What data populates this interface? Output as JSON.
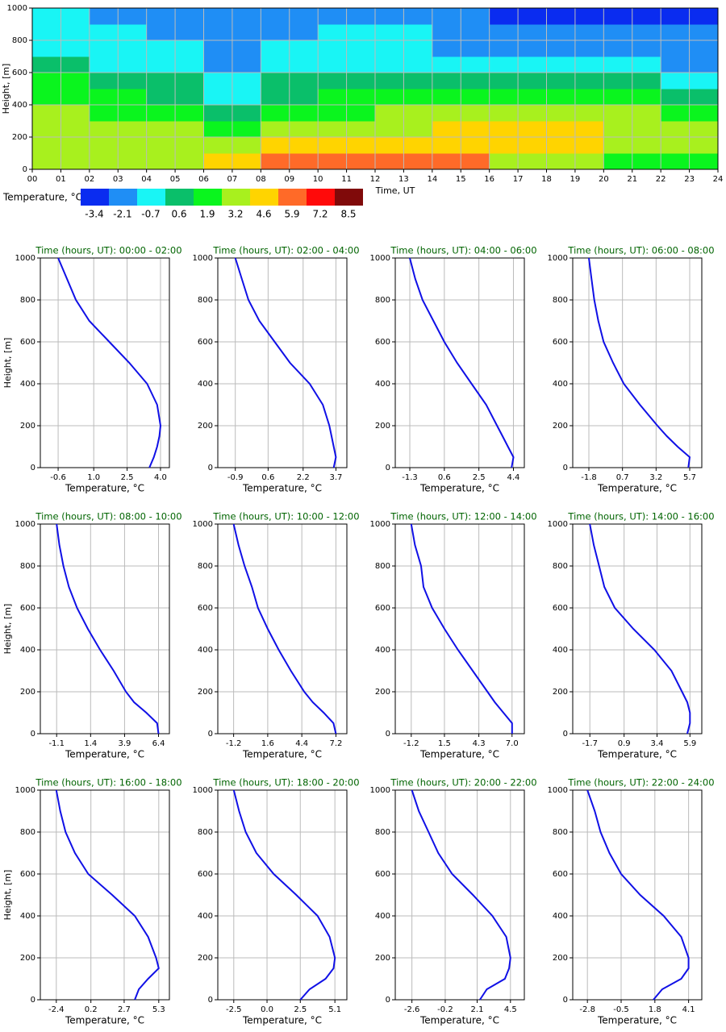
{
  "chart_data": [
    {
      "type": "heatmap",
      "xlabel": "Time, UT",
      "ylabel": "Height, [m]",
      "xbins": [
        0,
        2,
        4,
        6,
        8,
        10,
        12,
        14,
        16,
        18,
        20,
        22,
        24
      ],
      "ybins": [
        0,
        100,
        200,
        300,
        400,
        500,
        600,
        700,
        800,
        900,
        1000
      ],
      "values": [
        [
          3.7,
          3.7,
          4.4,
          5.7,
          6.3,
          7.0,
          7.0,
          5.9,
          3.8,
          3.2,
          2.8,
          2.3
        ],
        [
          3.9,
          3.5,
          3.8,
          4.0,
          4.6,
          5.3,
          5.6,
          5.7,
          5.3,
          5.0,
          4.4,
          4.1
        ],
        [
          3.9,
          3.3,
          3.2,
          2.6,
          3.5,
          4.0,
          4.4,
          4.9,
          4.8,
          4.9,
          4.3,
          3.8
        ],
        [
          3.6,
          2.8,
          2.5,
          1.4,
          2.6,
          3.0,
          3.2,
          3.8,
          4.0,
          4.2,
          3.7,
          3.0
        ],
        [
          3.0,
          2.0,
          1.7,
          0.4,
          1.6,
          2.0,
          2.0,
          2.4,
          2.6,
          3.0,
          2.5,
          1.6
        ],
        [
          2.2,
          1.2,
          0.9,
          -0.3,
          0.8,
          1.2,
          1.0,
          0.9,
          0.9,
          1.3,
          1.0,
          0.1
        ],
        [
          1.2,
          0.5,
          0.3,
          -0.9,
          0.1,
          0.5,
          0.1,
          -0.2,
          -0.5,
          -0.2,
          -0.2,
          -0.9
        ],
        [
          0.5,
          -0.1,
          -0.3,
          -1.3,
          -0.4,
          0.0,
          -0.3,
          -0.8,
          -1.4,
          -1.2,
          -1.1,
          -1.6
        ],
        [
          0.0,
          -0.5,
          -0.8,
          -1.5,
          -0.8,
          -0.6,
          -0.7,
          -1.2,
          -1.9,
          -1.9,
          -1.8,
          -2.1
        ],
        [
          -0.4,
          -0.8,
          -1.2,
          -1.7,
          -1.0,
          -1.0,
          -1.1,
          -1.6,
          -2.3,
          -2.3,
          -2.4,
          -2.6
        ]
      ],
      "xlim": [
        0,
        24
      ],
      "xticks": [
        {
          "value": 0,
          "label": "00"
        },
        {
          "value": 1,
          "label": "01"
        },
        {
          "value": 2,
          "label": "02"
        },
        {
          "value": 3,
          "label": "03"
        },
        {
          "value": 4,
          "label": "04"
        },
        {
          "value": 5,
          "label": "05"
        },
        {
          "value": 6,
          "label": "06"
        },
        {
          "value": 7,
          "label": "07"
        },
        {
          "value": 8,
          "label": "08"
        },
        {
          "value": 9,
          "label": "09"
        },
        10,
        11,
        12,
        13,
        14,
        15,
        16,
        17,
        18,
        19,
        20,
        21,
        22,
        23,
        24
      ],
      "ylim": [
        0,
        1000
      ],
      "yticks": [
        0,
        200,
        400,
        600,
        800,
        1000
      ],
      "grid": true,
      "colorbar": {
        "label": "Temperature, °C",
        "levels": [
          -3.4,
          -2.1,
          -0.7,
          0.6,
          1.9,
          3.2,
          4.6,
          5.9,
          7.2,
          8.5
        ],
        "colors": [
          "#0a2cf0",
          "#1f8ef5",
          "#19f5f5",
          "#0abf6a",
          "#0af51e",
          "#a8f01e",
          "#ffd400",
          "#ff6a28",
          "#ff0a0a",
          "#800a0a"
        ]
      }
    },
    {
      "type": "profile",
      "title": "Time (hours, UT): 00:00 - 02:00",
      "xlabel": "Temperature, °C",
      "ylabel": "Height, [m]",
      "color": "#1010e6",
      "heights": [
        0,
        50,
        100,
        150,
        200,
        300,
        400,
        500,
        600,
        700,
        800,
        900,
        1000
      ],
      "values": [
        3.5,
        3.7,
        3.85,
        3.95,
        4.0,
        3.85,
        3.4,
        2.6,
        1.7,
        0.8,
        0.2,
        -0.2,
        -0.6
      ],
      "xlim": [
        -1.4,
        4.4
      ],
      "xticks": [
        -0.6,
        {
          "value": 1,
          "label": "1.0"
        },
        2.5,
        {
          "value": 4,
          "label": "4.0"
        }
      ],
      "ylim": [
        0,
        1000
      ],
      "yticks": [
        0,
        200,
        400,
        600,
        800,
        1000
      ],
      "grid": true
    },
    {
      "type": "profile",
      "title": "Time (hours, UT): 02:00 - 04:00",
      "xlabel": "Temperature, °C",
      "color": "#1010e6",
      "heights": [
        0,
        50,
        100,
        150,
        200,
        300,
        400,
        500,
        600,
        700,
        800,
        900,
        1000
      ],
      "values": [
        3.6,
        3.7,
        3.6,
        3.5,
        3.4,
        3.1,
        2.5,
        1.6,
        0.9,
        0.2,
        -0.3,
        -0.6,
        -0.9
      ],
      "xlim": [
        -1.7,
        4.2
      ],
      "xticks": [
        -0.9,
        0.6,
        2.2,
        3.7
      ],
      "ylim": [
        0,
        1000
      ],
      "yticks": [
        0,
        200,
        400,
        600,
        800,
        1000
      ],
      "grid": true
    },
    {
      "type": "profile",
      "title": "Time (hours, UT): 04:00 - 06:00",
      "xlabel": "Temperature, °C",
      "color": "#1010e6",
      "heights": [
        0,
        50,
        100,
        150,
        200,
        300,
        400,
        500,
        600,
        700,
        800,
        900,
        1000
      ],
      "values": [
        4.3,
        4.4,
        4.1,
        3.8,
        3.5,
        2.9,
        2.1,
        1.3,
        0.6,
        0.0,
        -0.6,
        -1.0,
        -1.3
      ],
      "xlim": [
        -2.1,
        5.0
      ],
      "xticks": [
        -1.3,
        0.6,
        2.5,
        4.4
      ],
      "ylim": [
        0,
        1000
      ],
      "yticks": [
        0,
        200,
        400,
        600,
        800,
        1000
      ],
      "grid": true
    },
    {
      "type": "profile",
      "title": "Time (hours, UT): 06:00 - 08:00",
      "xlabel": "Temperature, °C",
      "color": "#1010e6",
      "heights": [
        0,
        50,
        100,
        150,
        200,
        300,
        400,
        500,
        600,
        700,
        800,
        900,
        1000
      ],
      "values": [
        5.6,
        5.7,
        4.8,
        4.0,
        3.3,
        2.0,
        0.8,
        0.0,
        -0.7,
        -1.1,
        -1.4,
        -1.6,
        -1.8
      ],
      "xlim": [
        -3.0,
        6.6
      ],
      "xticks": [
        -1.8,
        0.7,
        3.2,
        5.7
      ],
      "ylim": [
        0,
        1000
      ],
      "yticks": [
        0,
        200,
        400,
        600,
        800,
        1000
      ],
      "grid": true
    },
    {
      "type": "profile",
      "title": "Time (hours, UT): 08:00 - 10:00",
      "xlabel": "Temperature, °C",
      "ylabel": "Height, [m]",
      "color": "#1010e6",
      "heights": [
        0,
        50,
        100,
        150,
        200,
        300,
        400,
        500,
        600,
        700,
        800,
        900,
        1000
      ],
      "values": [
        6.4,
        6.3,
        5.5,
        4.6,
        4.0,
        3.1,
        2.1,
        1.2,
        0.4,
        -0.2,
        -0.6,
        -0.9,
        -1.1
      ],
      "xlim": [
        -2.3,
        7.2
      ],
      "xticks": [
        -1.1,
        1.4,
        3.9,
        6.4
      ],
      "ylim": [
        0,
        1000
      ],
      "yticks": [
        0,
        200,
        400,
        600,
        800,
        1000
      ],
      "grid": true
    },
    {
      "type": "profile",
      "title": "Time (hours, UT): 10:00 - 12:00",
      "xlabel": "Temperature, °C",
      "color": "#1010e6",
      "heights": [
        0,
        50,
        100,
        150,
        200,
        300,
        400,
        500,
        600,
        700,
        800,
        900,
        1000
      ],
      "values": [
        7.2,
        7.0,
        6.2,
        5.3,
        4.6,
        3.5,
        2.5,
        1.6,
        0.8,
        0.3,
        -0.3,
        -0.8,
        -1.2
      ],
      "xlim": [
        -2.5,
        8.1
      ],
      "xticks": [
        -1.2,
        1.6,
        4.4,
        7.2
      ],
      "ylim": [
        0,
        1000
      ],
      "yticks": [
        0,
        200,
        400,
        600,
        800,
        1000
      ],
      "grid": true
    },
    {
      "type": "profile",
      "title": "Time (hours, UT): 12:00 - 14:00",
      "xlabel": "Temperature, °C",
      "color": "#1010e6",
      "heights": [
        0,
        50,
        100,
        150,
        200,
        300,
        400,
        500,
        600,
        700,
        800,
        900,
        1000
      ],
      "values": [
        7.0,
        7.0,
        6.3,
        5.6,
        5.0,
        3.8,
        2.6,
        1.5,
        0.5,
        -0.2,
        -0.4,
        -0.9,
        -1.2
      ],
      "xlim": [
        -2.5,
        8.0
      ],
      "xticks": [
        -1.2,
        1.5,
        4.3,
        {
          "value": 7,
          "label": "7.0"
        }
      ],
      "ylim": [
        0,
        1000
      ],
      "yticks": [
        0,
        200,
        400,
        600,
        800,
        1000
      ],
      "grid": true
    },
    {
      "type": "profile",
      "title": "Time (hours, UT): 14:00 - 16:00",
      "xlabel": "Temperature, °C",
      "color": "#1010e6",
      "heights": [
        0,
        50,
        100,
        150,
        200,
        300,
        400,
        500,
        600,
        700,
        800,
        900,
        1000
      ],
      "values": [
        5.7,
        5.9,
        5.9,
        5.7,
        5.3,
        4.5,
        3.2,
        1.6,
        0.2,
        -0.6,
        -1.0,
        -1.4,
        -1.7
      ],
      "xlim": [
        -3.0,
        6.8
      ],
      "xticks": [
        -1.7,
        0.9,
        3.4,
        5.9
      ],
      "ylim": [
        0,
        1000
      ],
      "yticks": [
        0,
        200,
        400,
        600,
        800,
        1000
      ],
      "grid": true
    },
    {
      "type": "profile",
      "title": "Time (hours, UT): 16:00 - 18:00",
      "xlabel": "Temperature, °C",
      "ylabel": "Height, [m]",
      "color": "#1010e6",
      "heights": [
        0,
        50,
        100,
        150,
        200,
        300,
        400,
        500,
        600,
        700,
        800,
        900,
        1000
      ],
      "values": [
        3.5,
        3.8,
        4.5,
        5.3,
        5.1,
        4.5,
        3.5,
        1.8,
        0.0,
        -1.0,
        -1.7,
        -2.1,
        -2.4
      ],
      "xlim": [
        -3.6,
        6.1
      ],
      "xticks": [
        -2.4,
        0.2,
        2.7,
        5.3
      ],
      "ylim": [
        0,
        1000
      ],
      "yticks": [
        0,
        200,
        400,
        600,
        800,
        1000
      ],
      "grid": true
    },
    {
      "type": "profile",
      "title": "Time (hours, UT): 18:00 - 20:00",
      "xlabel": "Temperature, °C",
      "color": "#1010e6",
      "heights": [
        0,
        50,
        100,
        150,
        200,
        300,
        400,
        500,
        600,
        700,
        800,
        900,
        1000
      ],
      "values": [
        2.5,
        3.2,
        4.4,
        5.0,
        5.1,
        4.7,
        3.8,
        2.2,
        0.5,
        -0.8,
        -1.6,
        -2.1,
        -2.5
      ],
      "xlim": [
        -3.7,
        6.0
      ],
      "xticks": [
        -2.5,
        {
          "value": 0,
          "label": "0.0"
        },
        2.5,
        5.1
      ],
      "ylim": [
        0,
        1000
      ],
      "yticks": [
        0,
        200,
        400,
        600,
        800,
        1000
      ],
      "grid": true
    },
    {
      "type": "profile",
      "title": "Time (hours, UT): 20:00 - 22:00",
      "xlabel": "Temperature, °C",
      "color": "#1010e6",
      "heights": [
        0,
        50,
        100,
        150,
        200,
        300,
        400,
        500,
        600,
        700,
        800,
        900,
        1000
      ],
      "values": [
        2.3,
        2.8,
        4.1,
        4.4,
        4.5,
        4.2,
        3.2,
        1.8,
        0.3,
        -0.7,
        -1.4,
        -2.1,
        -2.6
      ],
      "xlim": [
        -3.8,
        5.5
      ],
      "xticks": [
        -2.6,
        -0.2,
        2.1,
        4.5
      ],
      "ylim": [
        0,
        1000
      ],
      "yticks": [
        0,
        200,
        400,
        600,
        800,
        1000
      ],
      "grid": true
    },
    {
      "type": "profile",
      "title": "Time (hours, UT): 22:00 - 24:00",
      "xlabel": "Temperature, °C",
      "color": "#1010e6",
      "heights": [
        0,
        50,
        100,
        150,
        200,
        300,
        400,
        500,
        600,
        700,
        800,
        900,
        1000
      ],
      "values": [
        1.7,
        2.3,
        3.6,
        4.1,
        4.1,
        3.6,
        2.4,
        0.8,
        -0.5,
        -1.3,
        -1.9,
        -2.3,
        -2.8
      ],
      "xlim": [
        -3.8,
        5.0
      ],
      "xticks": [
        -2.8,
        -0.5,
        1.8,
        4.1
      ],
      "ylim": [
        0,
        1000
      ],
      "yticks": [
        0,
        200,
        400,
        600,
        800,
        1000
      ],
      "grid": true
    }
  ]
}
